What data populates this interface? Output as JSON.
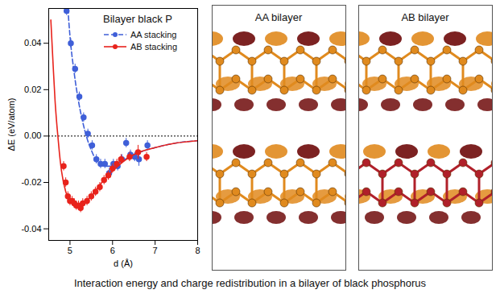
{
  "chart_data": {
    "type": "line",
    "title": "Bilayer black P",
    "x_label": "d (Å)",
    "y_label": "ΔE (eV/atom)",
    "xlim": [
      4.5,
      8
    ],
    "xticks": [
      5,
      6,
      7,
      8
    ],
    "ylim": [
      -0.045,
      0.055
    ],
    "yticks": [
      -0.04,
      -0.02,
      {
        "value": 0,
        "label": "0.00"
      },
      0.02,
      0.04
    ],
    "legend": "upper right",
    "reference_lines": [
      {
        "y": 0,
        "line_style": "dotted"
      }
    ],
    "series": [
      {
        "name": "AA stacking",
        "color": "#3f5fd8",
        "line_style": "dashed",
        "marker": "circle",
        "x": [
          4.92,
          5.02,
          5.12,
          5.22,
          5.32,
          5.42,
          5.52,
          5.62,
          5.72,
          5.82,
          5.92,
          6.02,
          6.12,
          6.22,
          6.32,
          6.42,
          6.52,
          6.62,
          6.82
        ],
        "values": [
          0.054,
          0.04,
          0.029,
          0.017,
          0.008,
          0.001,
          -0.004,
          -0.01,
          -0.012,
          -0.012,
          -0.016,
          -0.012,
          -0.013,
          -0.01,
          -0.003,
          -0.008,
          -0.009,
          -0.01,
          -0.004
        ],
        "error": [
          0.002,
          0.002,
          0.002,
          0.002,
          0.002,
          0.002,
          0.002,
          0.002,
          0.002,
          0.002,
          0.002,
          0.002,
          0.002,
          0.002,
          0.002,
          0.002,
          0.002,
          0.003,
          0.002
        ],
        "curve": {
          "x": [
            4.95,
            5.0,
            5.1,
            5.2,
            5.3,
            5.4,
            5.5,
            5.6,
            5.7,
            5.8,
            6.0,
            6.2,
            6.5,
            7.0,
            7.5,
            8.0
          ],
          "values": [
            0.055,
            0.043,
            0.027,
            0.015,
            0.006,
            -0.001,
            -0.006,
            -0.01,
            -0.012,
            -0.013,
            -0.013,
            -0.011,
            -0.008,
            -0.005,
            -0.003,
            -0.002
          ]
        }
      },
      {
        "name": "AB stacking",
        "color": "#e8231c",
        "line_style": "solid",
        "marker": "circle",
        "x": [
          4.85,
          4.9,
          4.95,
          5.0,
          5.05,
          5.1,
          5.15,
          5.2,
          5.25,
          5.3,
          5.4,
          5.5,
          5.6,
          5.7,
          5.8,
          5.9,
          6.0,
          6.1,
          6.2,
          6.4,
          6.6,
          6.8
        ],
        "values": [
          -0.013,
          -0.02,
          -0.026,
          -0.028,
          -0.028,
          -0.029,
          -0.03,
          -0.03,
          -0.031,
          -0.029,
          -0.028,
          -0.026,
          -0.024,
          -0.022,
          -0.019,
          -0.017,
          -0.014,
          -0.012,
          -0.01,
          -0.009,
          -0.007,
          -0.009
        ],
        "error": [
          0.002,
          0.002,
          0.002,
          0.002,
          0.002,
          0.002,
          0.002,
          0.002,
          0.002,
          0.002,
          0.002,
          0.002,
          0.002,
          0.002,
          0.002,
          0.002,
          0.002,
          0.002,
          0.002,
          0.002,
          0.003,
          0.002
        ],
        "curve": {
          "x": [
            4.55,
            4.6,
            4.65,
            4.7,
            4.75,
            4.8,
            4.9,
            5.0,
            5.1,
            5.2,
            5.3,
            5.5,
            5.75,
            6.0,
            6.5,
            7.0,
            7.5,
            8.0
          ],
          "values": [
            0.05,
            0.032,
            0.015,
            0.003,
            -0.007,
            -0.015,
            -0.024,
            -0.028,
            -0.03,
            -0.03,
            -0.029,
            -0.026,
            -0.02,
            -0.015,
            -0.008,
            -0.005,
            -0.003,
            -0.002
          ]
        }
      }
    ]
  },
  "panels": [
    {
      "title": "AA bilayer"
    },
    {
      "title": "AB bilayer"
    }
  ],
  "caption": "Interaction energy and charge redistribution in a bilayer of black phosphorus"
}
